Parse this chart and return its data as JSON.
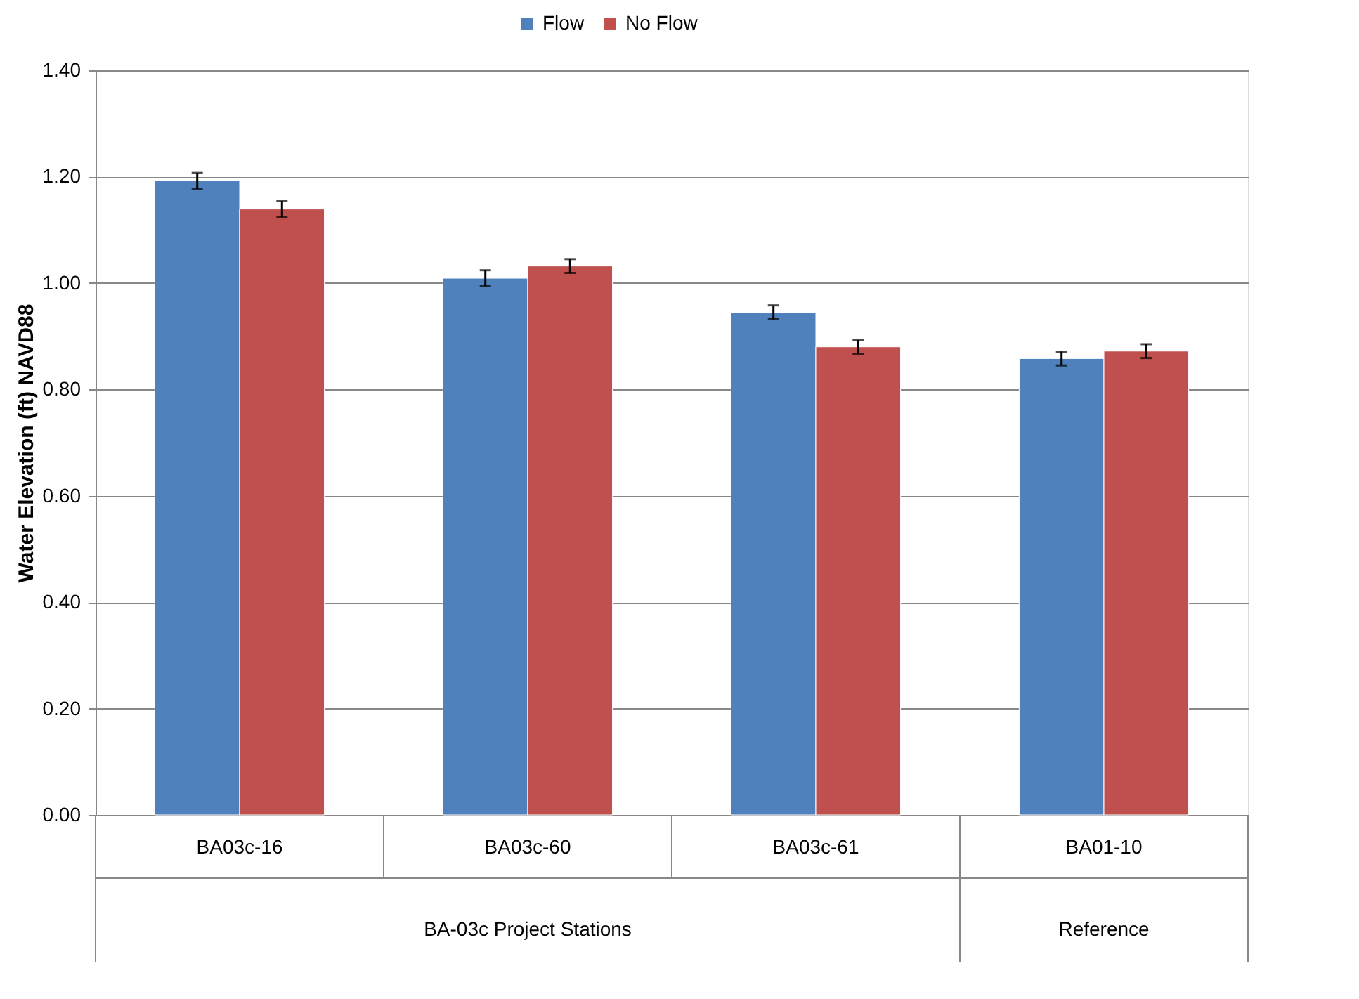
{
  "chart_data": {
    "type": "bar",
    "ylabel": "Water Elevation (ft) NAVD88",
    "categories": [
      "BA03c-16",
      "BA03c-60",
      "BA03c-61",
      "BA01-10"
    ],
    "series": [
      {
        "name": "Flow",
        "color": "#4f81bd",
        "values": [
          1.192,
          1.009,
          0.945,
          0.858
        ],
        "errors": [
          0.015,
          0.015,
          0.013,
          0.013
        ]
      },
      {
        "name": "No Flow",
        "color": "#c0504d",
        "values": [
          1.139,
          1.032,
          0.88,
          0.872
        ],
        "errors": [
          0.015,
          0.013,
          0.013,
          0.013
        ]
      }
    ],
    "ylim": [
      0,
      1.4
    ],
    "yticks": [
      {
        "value": 0,
        "label": "0.00"
      },
      {
        "value": 0.2,
        "label": "0.20"
      },
      {
        "value": 0.4,
        "label": "0.40"
      },
      {
        "value": 0.6,
        "label": "0.60"
      },
      {
        "value": 0.8,
        "label": "0.80"
      },
      {
        "value": 1.0,
        "label": "1.00"
      },
      {
        "value": 1.2,
        "label": "1.20"
      },
      {
        "value": 1.4,
        "label": "1.40"
      }
    ],
    "annotations": [
      "BA-03c Project Stations",
      "Reference"
    ],
    "grid": "y",
    "legend": "top"
  }
}
